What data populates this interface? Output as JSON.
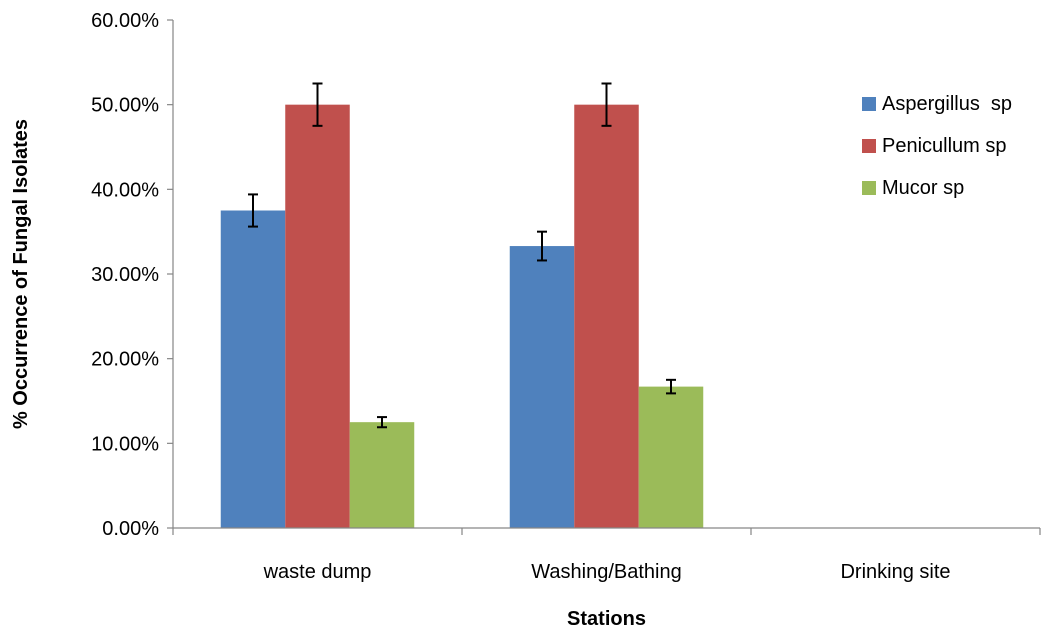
{
  "chart_data": {
    "type": "bar",
    "title": "",
    "xlabel": "Stations",
    "ylabel": "% Occurrence of Fungal Isolates",
    "categories": [
      "waste dump",
      "Washing/Bathing",
      "Drinking site"
    ],
    "ylim": [
      0,
      60
    ],
    "yticks": [
      "0.00%",
      "10.00%",
      "20.00%",
      "30.00%",
      "40.00%",
      "50.00%",
      "60.00%"
    ],
    "legend_position": "right",
    "grid": false,
    "series": [
      {
        "name": "Aspergillus  sp",
        "color": "#4f81bd",
        "values": [
          37.5,
          33.3,
          null
        ],
        "errors": [
          1.9,
          1.7,
          null
        ]
      },
      {
        "name": "Penicullum sp",
        "color": "#c0504d",
        "values": [
          50.0,
          50.0,
          null
        ],
        "errors": [
          2.5,
          2.5,
          null
        ]
      },
      {
        "name": "Mucor sp",
        "color": "#9bbb59",
        "values": [
          12.5,
          16.7,
          null
        ],
        "errors": [
          0.6,
          0.8,
          null
        ]
      }
    ]
  }
}
